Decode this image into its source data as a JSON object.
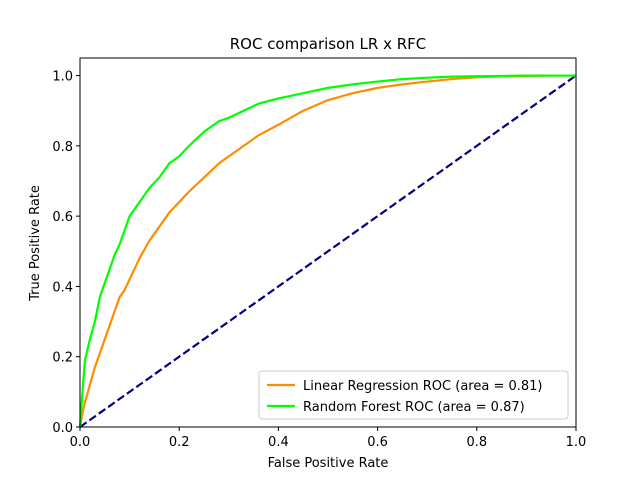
{
  "chart_data": {
    "type": "line",
    "title": "ROC comparison LR x RFC",
    "xlabel": "False Positive Rate",
    "ylabel": "True Positive Rate",
    "xlim": [
      0.0,
      1.0
    ],
    "ylim": [
      0.0,
      1.05
    ],
    "xticks": [
      "0.0",
      "0.2",
      "0.4",
      "0.6",
      "0.8",
      "1.0"
    ],
    "yticks": [
      "0.0",
      "0.2",
      "0.4",
      "0.6",
      "0.8",
      "1.0"
    ],
    "grid": false,
    "legend_position": "lower-right",
    "series": [
      {
        "name": "Linear Regression ROC (area = 0.81)",
        "color": "#ff8c00",
        "style": "solid",
        "x": [
          0,
          0.005,
          0.01,
          0.02,
          0.03,
          0.04,
          0.05,
          0.06,
          0.07,
          0.08,
          0.09,
          0.1,
          0.12,
          0.14,
          0.16,
          0.18,
          0.2,
          0.22,
          0.25,
          0.28,
          0.3,
          0.33,
          0.36,
          0.4,
          0.45,
          0.5,
          0.55,
          0.6,
          0.65,
          0.7,
          0.75,
          0.8,
          0.85,
          0.9,
          0.95,
          1.0
        ],
        "y": [
          0,
          0.04,
          0.07,
          0.12,
          0.17,
          0.21,
          0.25,
          0.29,
          0.33,
          0.37,
          0.39,
          0.42,
          0.48,
          0.53,
          0.57,
          0.61,
          0.64,
          0.67,
          0.71,
          0.75,
          0.77,
          0.8,
          0.83,
          0.86,
          0.9,
          0.93,
          0.95,
          0.965,
          0.975,
          0.983,
          0.99,
          0.995,
          0.998,
          0.999,
          1.0,
          1.0
        ]
      },
      {
        "name": "Random Forest ROC (area = 0.87)",
        "color": "#00ff00",
        "style": "solid",
        "x": [
          0,
          0.005,
          0.01,
          0.02,
          0.03,
          0.04,
          0.05,
          0.06,
          0.07,
          0.08,
          0.09,
          0.1,
          0.12,
          0.14,
          0.16,
          0.18,
          0.2,
          0.22,
          0.25,
          0.28,
          0.3,
          0.33,
          0.36,
          0.4,
          0.45,
          0.5,
          0.55,
          0.6,
          0.65,
          0.7,
          0.75,
          0.8,
          0.85,
          0.9,
          0.95,
          1.0
        ],
        "y": [
          0,
          0.1,
          0.19,
          0.25,
          0.3,
          0.37,
          0.41,
          0.45,
          0.49,
          0.52,
          0.56,
          0.6,
          0.64,
          0.68,
          0.71,
          0.75,
          0.77,
          0.8,
          0.84,
          0.87,
          0.88,
          0.9,
          0.92,
          0.935,
          0.95,
          0.965,
          0.975,
          0.983,
          0.99,
          0.994,
          0.997,
          0.998,
          0.999,
          1.0,
          1.0,
          1.0
        ]
      },
      {
        "name": "",
        "color": "#000080",
        "style": "dashed",
        "x": [
          0,
          1
        ],
        "y": [
          0,
          1
        ]
      }
    ]
  }
}
